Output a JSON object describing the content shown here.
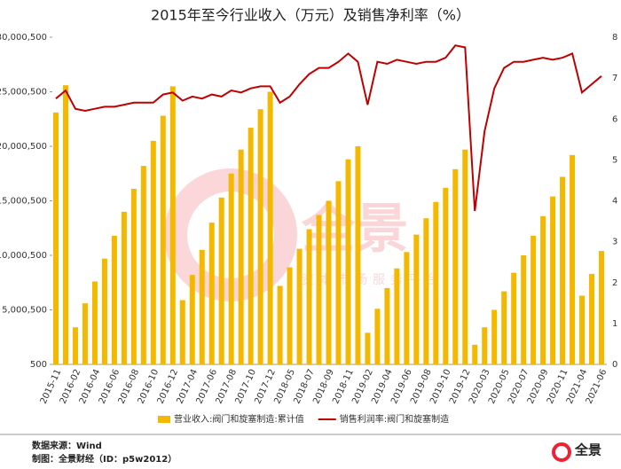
{
  "chart_data": {
    "type": "bar_line",
    "title": "2015年至今行业收入（万元）及销售净利率（%）",
    "categories": [
      "2015-11",
      null,
      "2016-02",
      null,
      "2016-04",
      null,
      "2016-06",
      null,
      "2016-08",
      null,
      "2016-10",
      null,
      "2016-12",
      null,
      "2017-04",
      null,
      "2017-06",
      null,
      "2017-08",
      null,
      "2017-10",
      null,
      "2017-12",
      null,
      "2018-05",
      null,
      "2018-07",
      null,
      "2018-09",
      null,
      "2018-11",
      null,
      "2019-02",
      null,
      "2019-04",
      null,
      "2019-06",
      null,
      "2019-08",
      null,
      "2019-10",
      null,
      "2019-12",
      null,
      "2020-03",
      null,
      "2020-05",
      null,
      "2020-07",
      null,
      "2020-09",
      null,
      "2020-11",
      null,
      "2021-04",
      null,
      "2021-06"
    ],
    "series": [
      {
        "name": "营业收入:阀门和旋塞制造:累计值",
        "color": "#f5b800",
        "kind": "bar",
        "axis": "y",
        "values": [
          23100000,
          25600000,
          3400000,
          5600000,
          7600000,
          9700000,
          11800000,
          14000000,
          16100000,
          18200000,
          20500000,
          22800000,
          25500000,
          5900000,
          8200000,
          10500000,
          13000000,
          15300000,
          17500000,
          19700000,
          21700000,
          23400000,
          25000000,
          7200000,
          8900000,
          10600000,
          12400000,
          13700000,
          15000000,
          16800000,
          18800000,
          20000000,
          2900000,
          5100000,
          7000000,
          8800000,
          10300000,
          11900000,
          13400000,
          14900000,
          16200000,
          17900000,
          19700000,
          1800000,
          3400000,
          5000000,
          6700000,
          8400000,
          10000000,
          11800000,
          13600000,
          15400000,
          17200000,
          19200000,
          6300000,
          8300000,
          10400000
        ]
      },
      {
        "name": "销售利润率:阀门和旋塞制造",
        "color": "#c00000",
        "kind": "line",
        "axis": "y2",
        "values": [
          6.5,
          6.7,
          6.25,
          6.2,
          6.25,
          6.3,
          6.3,
          6.35,
          6.4,
          6.4,
          6.4,
          6.6,
          6.65,
          6.45,
          6.55,
          6.5,
          6.6,
          6.55,
          6.7,
          6.65,
          6.75,
          6.8,
          6.8,
          6.4,
          6.55,
          6.85,
          7.1,
          7.25,
          7.25,
          7.4,
          7.6,
          7.4,
          6.35,
          7.4,
          7.35,
          7.45,
          7.4,
          7.35,
          7.4,
          7.4,
          7.5,
          7.8,
          7.75,
          3.75,
          5.7,
          6.75,
          7.25,
          7.4,
          7.4,
          7.45,
          7.5,
          7.45,
          7.5,
          7.6,
          6.65,
          6.85,
          7.05
        ]
      }
    ],
    "ylim": [
      500,
      30000500
    ],
    "yticks": [
      500,
      {
        "value": 5000500,
        "label": "5,000,500"
      },
      {
        "value": 10000500,
        "label": "10,000,500"
      },
      {
        "value": 15000500,
        "label": "15,000,500"
      },
      {
        "value": 20000500,
        "label": "20,000,500"
      },
      {
        "value": 25000500,
        "label": "25,000,500"
      },
      {
        "value": 30000500,
        "label": "30,000,500"
      }
    ],
    "y2lim": [
      0,
      8
    ],
    "y2ticks": [
      0,
      1,
      2,
      3,
      4,
      5,
      6,
      7,
      8
    ],
    "legend": "bottom",
    "watermark": "全景",
    "watermark_sub": "资本市场服务平台",
    "source": "数据来源：Wind",
    "credit": "制图：全景财经（ID：p5w2012）",
    "logo": "全景"
  }
}
